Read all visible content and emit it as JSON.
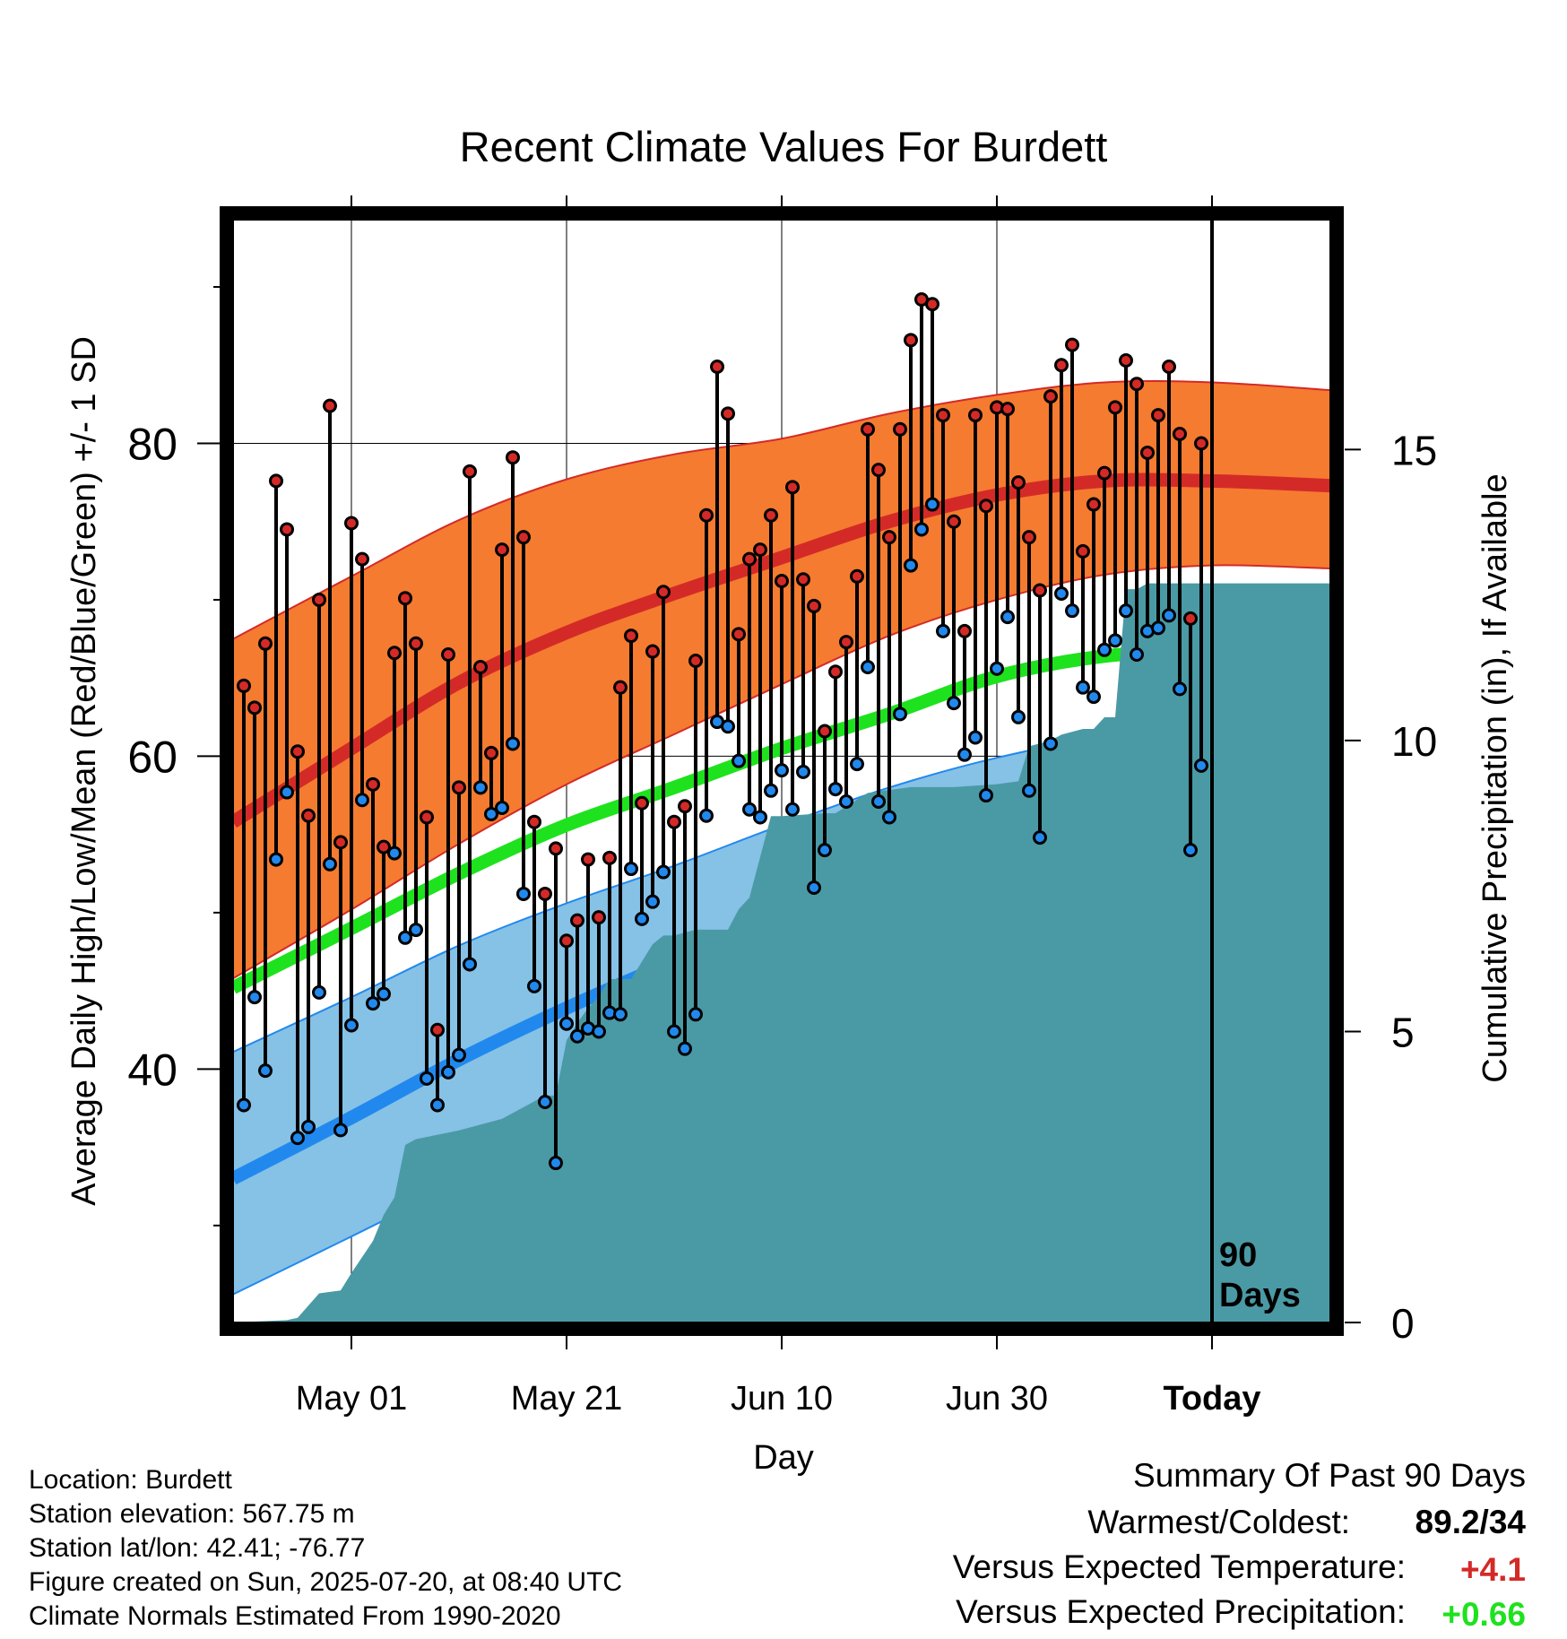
{
  "chart_data": {
    "type": "line",
    "title": "Recent Climate Values For Burdett",
    "xlabel": "Day",
    "ylabel": "Average Daily High/Low/Mean (Red/Blue/Green) +/- 1 SD",
    "y2label": "Cumulative Precipitation (in), If Available",
    "xlim": [
      -11,
      91
    ],
    "ylim": [
      23.8,
      94.3
    ],
    "y2lim": [
      0,
      18.95
    ],
    "x_ticks": [
      {
        "x": 0,
        "label": "May 01"
      },
      {
        "x": 20,
        "label": "May 21"
      },
      {
        "x": 40,
        "label": "Jun 10"
      },
      {
        "x": 60,
        "label": "Jun 30"
      },
      {
        "x": 80,
        "label": "Today"
      }
    ],
    "y_ticks": [
      40,
      60,
      80
    ],
    "y2_ticks": [
      0,
      5,
      10,
      15
    ],
    "grid": true,
    "today_marker": {
      "x": 80,
      "label": "90\nDays"
    },
    "colors": {
      "high": "#d42a27",
      "high_band": "#f47b30",
      "low": "#2189ee",
      "low_band": "#86c1e6",
      "mean": "#1ee21e",
      "precip": "#4a9aa5"
    },
    "series": [
      {
        "name": "High",
        "x": [
          -10,
          -9,
          -8,
          -7,
          -6,
          -5,
          -4,
          -3,
          -2,
          -1,
          0,
          1,
          2,
          3,
          4,
          5,
          6,
          7,
          8,
          9,
          10,
          11,
          12,
          13,
          14,
          15,
          16,
          17,
          18,
          19,
          20,
          21,
          22,
          23,
          24,
          25,
          26,
          27,
          28,
          29,
          30,
          31,
          32,
          33,
          34,
          35,
          36,
          37,
          38,
          39,
          40,
          41,
          42,
          43,
          44,
          45,
          46,
          47,
          48,
          49,
          50,
          51,
          52,
          53,
          54,
          55,
          56,
          57,
          58,
          59,
          60,
          61,
          62,
          63,
          64,
          65,
          66,
          67,
          68,
          69,
          70,
          71,
          72,
          73,
          74,
          75,
          76,
          77,
          78,
          79
        ],
        "values": [
          64.5,
          63.1,
          67.2,
          77.6,
          74.5,
          60.3,
          56.2,
          70.0,
          82.4,
          54.5,
          74.9,
          72.6,
          58.2,
          54.2,
          66.6,
          70.1,
          67.2,
          56.1,
          42.5,
          66.5,
          58.0,
          78.2,
          65.7,
          60.2,
          73.2,
          79.1,
          74.0,
          55.8,
          51.2,
          54.1,
          48.2,
          49.5,
          53.4,
          49.7,
          53.5,
          64.4,
          67.7,
          57.0,
          66.7,
          70.5,
          55.8,
          56.8,
          66.1,
          75.4,
          84.9,
          81.9,
          67.8,
          72.6,
          73.2,
          75.4,
          71.2,
          77.2,
          71.3,
          69.6,
          61.6,
          65.4,
          67.3,
          71.5,
          80.9,
          78.3,
          74.0,
          80.9,
          86.6,
          89.2,
          88.9,
          81.8,
          75.0,
          68.0,
          81.8,
          76.0,
          82.3,
          82.2,
          77.5,
          74.0,
          70.6,
          83.0,
          85.0,
          86.3,
          73.1,
          76.1,
          78.1,
          82.3,
          85.3,
          83.8,
          79.4,
          81.8,
          84.9,
          80.6,
          68.8,
          80.0
        ]
      },
      {
        "name": "Low",
        "x": [
          -10,
          -9,
          -8,
          -7,
          -6,
          -5,
          -4,
          -3,
          -2,
          -1,
          0,
          1,
          2,
          3,
          4,
          5,
          6,
          7,
          8,
          9,
          10,
          11,
          12,
          13,
          14,
          15,
          16,
          17,
          18,
          19,
          20,
          21,
          22,
          23,
          24,
          25,
          26,
          27,
          28,
          29,
          30,
          31,
          32,
          33,
          34,
          35,
          36,
          37,
          38,
          39,
          40,
          41,
          42,
          43,
          44,
          45,
          46,
          47,
          48,
          49,
          50,
          51,
          52,
          53,
          54,
          55,
          56,
          57,
          58,
          59,
          60,
          61,
          62,
          63,
          64,
          65,
          66,
          67,
          68,
          69,
          70,
          71,
          72,
          73,
          74,
          75,
          76,
          77,
          78,
          79
        ],
        "values": [
          37.7,
          44.6,
          39.9,
          53.4,
          57.7,
          35.6,
          36.3,
          44.9,
          53.1,
          36.1,
          42.8,
          57.2,
          44.2,
          44.8,
          53.8,
          48.4,
          48.9,
          39.4,
          37.7,
          39.8,
          40.9,
          46.7,
          58.0,
          56.3,
          56.7,
          60.8,
          51.2,
          45.3,
          37.9,
          34.0,
          42.9,
          42.1,
          42.6,
          42.4,
          43.6,
          43.5,
          52.8,
          49.6,
          50.7,
          52.6,
          42.4,
          41.3,
          43.5,
          56.2,
          62.2,
          61.9,
          59.7,
          56.6,
          56.1,
          57.8,
          59.1,
          56.6,
          59.0,
          51.6,
          54.0,
          57.9,
          57.1,
          59.5,
          65.7,
          57.1,
          56.1,
          62.7,
          72.2,
          74.5,
          76.1,
          68.0,
          63.4,
          60.1,
          61.2,
          57.5,
          65.6,
          68.9,
          62.5,
          57.8,
          54.8,
          60.8,
          70.4,
          69.3,
          64.4,
          63.8,
          66.8,
          67.4,
          69.3,
          66.5,
          68.0,
          68.2,
          69.0,
          64.3,
          54.0,
          59.4
        ]
      },
      {
        "name": "Normal High",
        "x": [
          -11,
          0,
          10,
          20,
          30,
          40,
          50,
          60,
          70,
          80,
          91
        ],
        "values": [
          55.8,
          60.5,
          64.7,
          67.9,
          70.4,
          72.7,
          75.0,
          76.7,
          77.6,
          77.6,
          77.3
        ]
      },
      {
        "name": "Normal High +1 SD",
        "x": [
          -11,
          0,
          10,
          20,
          30,
          40,
          50,
          60,
          70,
          80,
          91
        ],
        "values": [
          67.5,
          71.5,
          75.1,
          77.7,
          79.3,
          80.3,
          81.9,
          83.1,
          83.9,
          83.9,
          83.4
        ]
      },
      {
        "name": "Normal High -1 SD",
        "x": [
          -11,
          0,
          10,
          20,
          30,
          40,
          50,
          60,
          70,
          80,
          91
        ],
        "values": [
          45.8,
          50.2,
          54.4,
          58.2,
          61.4,
          64.6,
          67.7,
          70.0,
          71.6,
          72.2,
          72.0
        ]
      },
      {
        "name": "Normal Mean",
        "x": [
          -11,
          0,
          10,
          20,
          30,
          40,
          50,
          60,
          70,
          80,
          91
        ],
        "values": [
          45.2,
          49.0,
          52.5,
          55.6,
          58.0,
          60.5,
          62.7,
          65.1,
          66.4,
          66.7,
          66.5
        ]
      },
      {
        "name": "Normal Low",
        "x": [
          -11,
          0,
          10,
          20,
          30,
          40,
          50,
          60,
          70,
          80,
          91
        ],
        "values": [
          33.0,
          36.9,
          40.6,
          43.9,
          46.9,
          49.8,
          52.2,
          53.9,
          54.9,
          55.2,
          55.0
        ]
      },
      {
        "name": "Normal Low +1 SD",
        "x": [
          -11,
          0,
          10,
          20,
          30,
          40,
          50,
          60,
          70,
          80,
          91
        ],
        "values": [
          41.1,
          44.6,
          47.9,
          50.6,
          53.0,
          55.6,
          58.0,
          59.9,
          61.2,
          61.5,
          61.2
        ]
      },
      {
        "name": "Normal Low -1 SD",
        "x": [
          -11,
          0,
          10,
          20,
          30,
          40,
          50,
          60,
          70,
          80,
          91
        ],
        "values": [
          25.6,
          29.3,
          32.7,
          35.9,
          39.2,
          42.5,
          45.9,
          48.1,
          49.3,
          49.6,
          49.5
        ]
      },
      {
        "name": "Cumulative Precipitation",
        "axis": "y2",
        "x": [
          -11,
          -6,
          -5,
          -3,
          -1,
          0,
          2,
          3,
          4,
          5,
          6,
          10,
          14,
          16,
          18,
          19,
          20,
          21,
          22,
          23,
          24,
          26,
          28,
          29,
          30,
          32,
          34,
          35,
          36,
          37,
          38,
          39,
          40,
          44,
          45,
          48,
          52,
          56,
          60,
          62,
          63,
          65,
          66,
          68,
          69,
          70,
          71,
          72,
          73,
          74,
          76,
          77,
          91
        ],
        "values": [
          0,
          0.04,
          0.08,
          0.5,
          0.55,
          0.85,
          1.4,
          1.85,
          2.15,
          3.05,
          3.15,
          3.3,
          3.5,
          3.7,
          3.9,
          3.9,
          4.85,
          5.15,
          5.4,
          5.6,
          5.9,
          5.9,
          6.5,
          6.65,
          6.65,
          6.75,
          6.75,
          6.75,
          7.1,
          7.3,
          8.0,
          8.7,
          8.7,
          8.75,
          8.75,
          9.1,
          9.2,
          9.2,
          9.25,
          9.3,
          9.9,
          10.0,
          10.1,
          10.2,
          10.2,
          10.4,
          10.4,
          12.6,
          12.6,
          12.7,
          12.7,
          12.7,
          12.7
        ]
      }
    ]
  },
  "info": {
    "location": "Location: Burdett",
    "elevation": "Station elevation: 567.75 m",
    "latlon": "Station lat/lon: 42.41; -76.77",
    "created": "Figure created on Sun, 2025-07-20, at 08:40 UTC",
    "normals": "Climate Normals Estimated From 1990-2020"
  },
  "summary": {
    "title": "Summary Of Past 90 Days",
    "warmest_coldest_label": "Warmest/Coldest:",
    "warmest_coldest_value": "89.2/34",
    "temp_label": "Versus Expected Temperature:",
    "temp_value": "+4.1",
    "temp_color": "#d42a27",
    "precip_label": "Versus Expected Precipitation:",
    "precip_value": "+0.66",
    "precip_color": "#1ee21e"
  }
}
